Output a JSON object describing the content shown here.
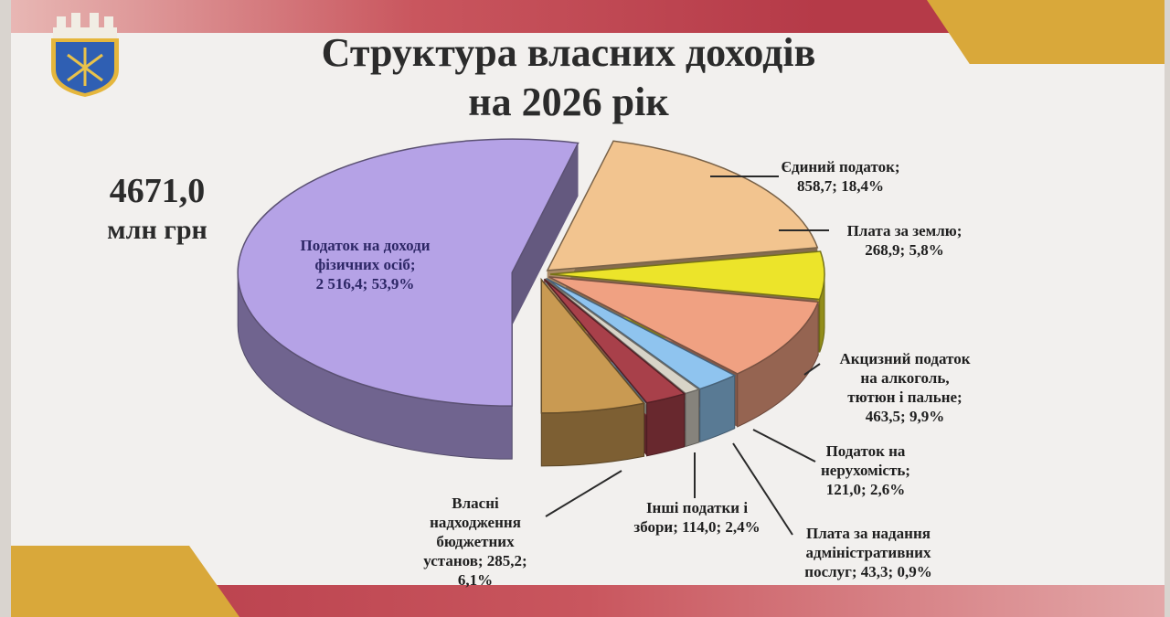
{
  "title_line1": "Структура власних доходів",
  "title_line2": "на 2026 рік",
  "total_value": "4671,0",
  "total_unit": "млн грн",
  "colors": {
    "title": "#2b2b2b",
    "band": "#b53a48",
    "gold": "#d9a83a"
  },
  "chart_data": {
    "type": "pie",
    "style": "3d-exploded",
    "unit": "млн грн",
    "slices": [
      {
        "label": "Податок на доходи фізичних осіб",
        "value": 2516.4,
        "percent": 53.9,
        "color": "#b5a2e6",
        "label_lines": [
          "Податок на доходи",
          "фізичних осіб;",
          "2 516,4; 53,9%"
        ]
      },
      {
        "label": "Єдиний податок",
        "value": 858.7,
        "percent": 18.4,
        "color": "#f2c48f",
        "label_lines": [
          "Єдиний податок;",
          "858,7; 18,4%"
        ]
      },
      {
        "label": "Плата за землю",
        "value": 268.9,
        "percent": 5.8,
        "color": "#ece42a",
        "label_lines": [
          "Плата за землю;",
          "268,9; 5,8%"
        ]
      },
      {
        "label": "Акцизний податок на алкоголь, тютюн і пальне",
        "value": 463.5,
        "percent": 9.9,
        "color": "#f0a182",
        "label_lines": [
          "Акцизний податок",
          "на алкоголь,",
          "тютюн і пальне;",
          "463,5; 9,9%"
        ]
      },
      {
        "label": "Податок на нерухомість",
        "value": 121.0,
        "percent": 2.6,
        "color": "#8fc4ef",
        "label_lines": [
          "Податок на",
          "нерухомість;",
          "121,0; 2,6%"
        ]
      },
      {
        "label": "Плата за надання адміністративних послуг",
        "value": 43.3,
        "percent": 0.9,
        "color": "#d8d4c8",
        "label_lines": [
          "Плата за надання",
          "адміністративних",
          "послуг; 43,3; 0,9%"
        ]
      },
      {
        "label": "Інші податки і збори",
        "value": 114.0,
        "percent": 2.4,
        "color": "#a8404a",
        "label_lines": [
          "Інші податки і",
          "збори; 114,0; 2,4%"
        ]
      },
      {
        "label": "Власні надходження бюджетних установ",
        "value": 285.2,
        "percent": 6.1,
        "color": "#c99a52",
        "label_lines": [
          "Власні",
          "надходження",
          "бюджетних",
          "установ; 285,2;",
          "6,1%"
        ]
      }
    ]
  }
}
